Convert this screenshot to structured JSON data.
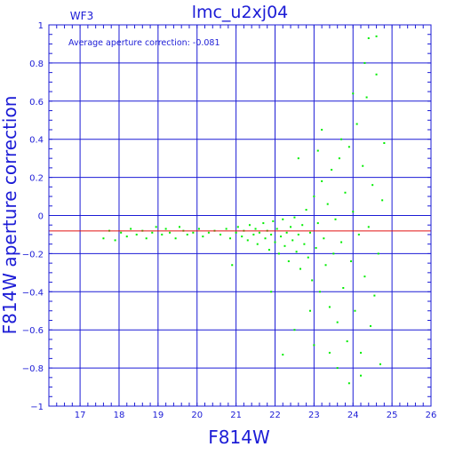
{
  "chart_data": {
    "type": "scatter",
    "title": "lmc_u2xj04",
    "corner_label": "WF3",
    "annotation": "Average aperture correction: -0.081",
    "xlabel": "F814W",
    "ylabel": "F814W aperture correction",
    "xlim": [
      16.2,
      26
    ],
    "ylim": [
      -1,
      1
    ],
    "xticks": [
      17,
      18,
      19,
      20,
      21,
      22,
      23,
      24,
      25,
      26
    ],
    "yticks": [
      -1,
      -0.8,
      -0.6,
      -0.4,
      -0.2,
      0,
      0.2,
      0.4,
      0.6,
      0.8,
      1
    ],
    "xtick_labels": [
      "17",
      "18",
      "19",
      "20",
      "21",
      "22",
      "23",
      "24",
      "25",
      "26"
    ],
    "ytick_labels": [
      "−1",
      "−0.8",
      "−0.6",
      "−0.4",
      "−0.2",
      "0",
      "0.2",
      "0.4",
      "0.6",
      "0.8",
      "1"
    ],
    "grid": true,
    "reference_line": {
      "y": -0.081,
      "color": "#e01010"
    },
    "colors": {
      "axes": "#1c1cd6",
      "points": "#00ee00",
      "background": "#ffffff"
    },
    "points": [
      [
        17.6,
        -0.12
      ],
      [
        17.75,
        -0.08
      ],
      [
        17.9,
        -0.13
      ],
      [
        18.05,
        -0.09
      ],
      [
        18.2,
        -0.11
      ],
      [
        18.3,
        -0.07
      ],
      [
        18.45,
        -0.1
      ],
      [
        18.6,
        -0.08
      ],
      [
        18.7,
        -0.12
      ],
      [
        18.85,
        -0.09
      ],
      [
        18.95,
        -0.06
      ],
      [
        19.1,
        -0.1
      ],
      [
        19.2,
        -0.07
      ],
      [
        19.3,
        -0.09
      ],
      [
        19.45,
        -0.12
      ],
      [
        19.55,
        -0.06
      ],
      [
        19.65,
        -0.08
      ],
      [
        19.75,
        -0.1
      ],
      [
        19.9,
        -0.09
      ],
      [
        20.05,
        -0.07
      ],
      [
        20.15,
        -0.11
      ],
      [
        20.3,
        -0.09
      ],
      [
        20.45,
        -0.08
      ],
      [
        20.6,
        -0.1
      ],
      [
        20.75,
        -0.07
      ],
      [
        20.85,
        -0.12
      ],
      [
        20.9,
        -0.26
      ],
      [
        21.0,
        -0.09
      ],
      [
        21.05,
        -0.06
      ],
      [
        21.15,
        -0.11
      ],
      [
        21.2,
        -0.08
      ],
      [
        21.3,
        -0.13
      ],
      [
        21.35,
        -0.05
      ],
      [
        21.45,
        -0.1
      ],
      [
        21.5,
        -0.07
      ],
      [
        21.55,
        -0.15
      ],
      [
        21.6,
        -0.09
      ],
      [
        21.7,
        -0.04
      ],
      [
        21.75,
        -0.12
      ],
      [
        21.8,
        -0.08
      ],
      [
        21.85,
        -0.18
      ],
      [
        21.9,
        -0.1
      ],
      [
        21.95,
        -0.03
      ],
      [
        22.0,
        -0.14
      ],
      [
        22.05,
        -0.07
      ],
      [
        22.1,
        -0.2
      ],
      [
        22.15,
        -0.11
      ],
      [
        22.2,
        -0.02
      ],
      [
        22.25,
        -0.16
      ],
      [
        22.3,
        -0.09
      ],
      [
        22.35,
        -0.24
      ],
      [
        22.4,
        -0.06
      ],
      [
        22.45,
        -0.13
      ],
      [
        22.5,
        -0.01
      ],
      [
        22.55,
        -0.19
      ],
      [
        22.6,
        -0.1
      ],
      [
        22.65,
        -0.28
      ],
      [
        22.7,
        -0.05
      ],
      [
        22.75,
        -0.15
      ],
      [
        22.8,
        0.03
      ],
      [
        22.85,
        -0.22
      ],
      [
        22.9,
        -0.09
      ],
      [
        22.95,
        -0.34
      ],
      [
        23.0,
        0.1
      ],
      [
        23.05,
        -0.17
      ],
      [
        23.1,
        -0.04
      ],
      [
        23.15,
        -0.4
      ],
      [
        23.2,
        0.18
      ],
      [
        23.25,
        -0.12
      ],
      [
        23.3,
        -0.26
      ],
      [
        23.35,
        0.06
      ],
      [
        23.4,
        -0.48
      ],
      [
        23.45,
        0.24
      ],
      [
        23.5,
        -0.2
      ],
      [
        23.55,
        -0.02
      ],
      [
        23.6,
        -0.56
      ],
      [
        23.65,
        0.3
      ],
      [
        23.7,
        -0.14
      ],
      [
        23.75,
        -0.38
      ],
      [
        23.8,
        0.12
      ],
      [
        23.85,
        -0.66
      ],
      [
        23.9,
        0.36
      ],
      [
        23.95,
        -0.24
      ],
      [
        24.0,
        0.02
      ],
      [
        24.05,
        -0.5
      ],
      [
        24.1,
        0.48
      ],
      [
        24.15,
        -0.1
      ],
      [
        24.2,
        -0.72
      ],
      [
        24.25,
        0.26
      ],
      [
        24.3,
        -0.32
      ],
      [
        24.35,
        0.62
      ],
      [
        24.4,
        -0.06
      ],
      [
        24.45,
        -0.58
      ],
      [
        24.5,
        0.16
      ],
      [
        24.55,
        -0.42
      ],
      [
        24.6,
        0.74
      ],
      [
        24.65,
        -0.2
      ],
      [
        24.7,
        -0.78
      ],
      [
        24.75,
        0.08
      ],
      [
        24.8,
        0.38
      ],
      [
        24.4,
        0.93
      ],
      [
        24.6,
        0.94
      ],
      [
        24.3,
        0.8
      ],
      [
        24.0,
        0.64
      ],
      [
        23.7,
        0.4
      ],
      [
        23.2,
        0.45
      ],
      [
        23.6,
        -0.8
      ],
      [
        23.0,
        -0.68
      ],
      [
        22.9,
        -0.5
      ],
      [
        23.4,
        -0.72
      ],
      [
        24.2,
        -0.84
      ],
      [
        23.9,
        -0.88
      ],
      [
        22.2,
        -0.73
      ],
      [
        21.9,
        -0.4
      ],
      [
        22.5,
        -0.6
      ],
      [
        23.1,
        0.34
      ],
      [
        22.6,
        0.3
      ]
    ]
  }
}
